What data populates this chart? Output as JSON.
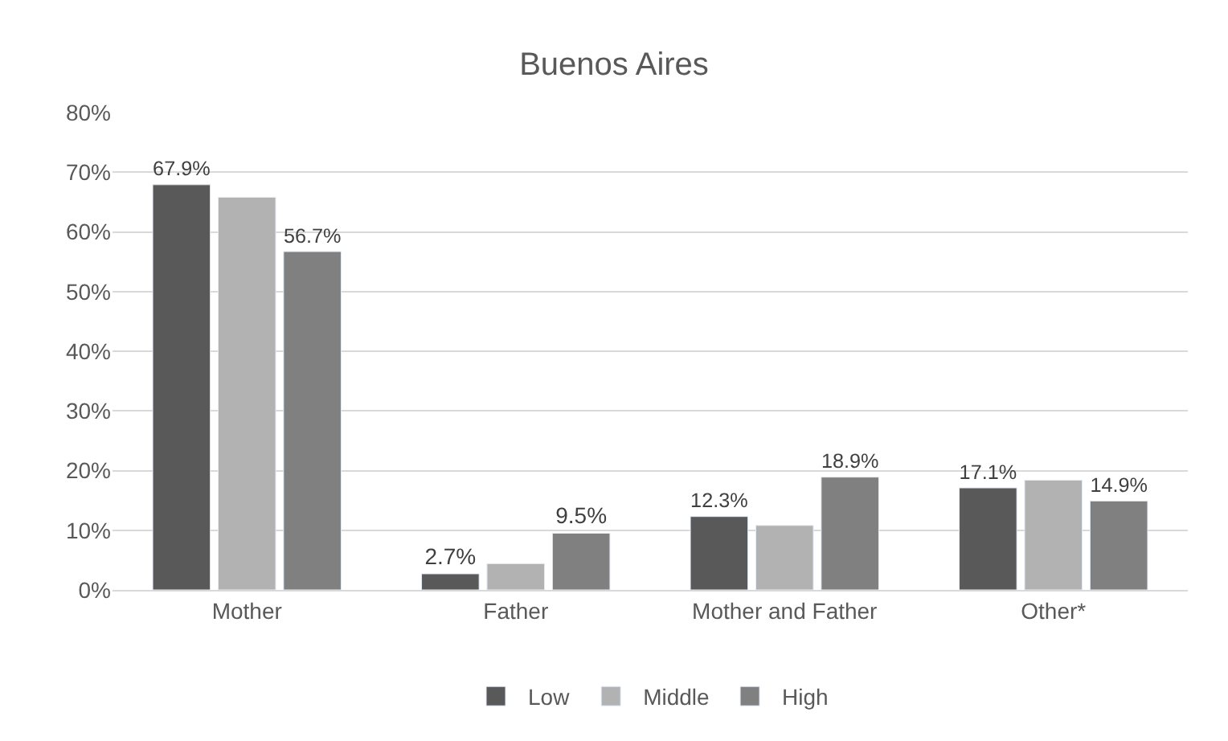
{
  "chart_data": {
    "type": "bar",
    "title": "Buenos Aires",
    "categories": [
      "Mother",
      "Father",
      "Mother and Father",
      "Other*"
    ],
    "series": [
      {
        "name": "Low",
        "color": "#595959",
        "values": [
          67.9,
          2.7,
          12.3,
          17.1
        ],
        "value_labels": [
          "67.9%",
          "2.7%",
          "12.3%",
          "17.1%"
        ]
      },
      {
        "name": "Middle",
        "color": "#b2b2b2",
        "values": [
          65.8,
          4.4,
          10.8,
          18.4
        ],
        "value_labels": [
          null,
          null,
          null,
          null
        ]
      },
      {
        "name": "High",
        "color": "#808080",
        "values": [
          56.7,
          9.5,
          18.9,
          14.9
        ],
        "value_labels": [
          "56.7%",
          "9.5%",
          "18.9%",
          "14.9%"
        ]
      }
    ],
    "ylim": [
      0,
      80
    ],
    "yticks": [
      {
        "value": 0,
        "label": "0%"
      },
      {
        "value": 10,
        "label": "10%"
      },
      {
        "value": 20,
        "label": "20%"
      },
      {
        "value": 30,
        "label": "30%"
      },
      {
        "value": 40,
        "label": "40%"
      },
      {
        "value": 50,
        "label": "50%"
      },
      {
        "value": 60,
        "label": "60%"
      },
      {
        "value": 70,
        "label": "70%"
      },
      {
        "value": 80,
        "label": "80%"
      }
    ],
    "grid": "y",
    "legend": "bottom"
  }
}
